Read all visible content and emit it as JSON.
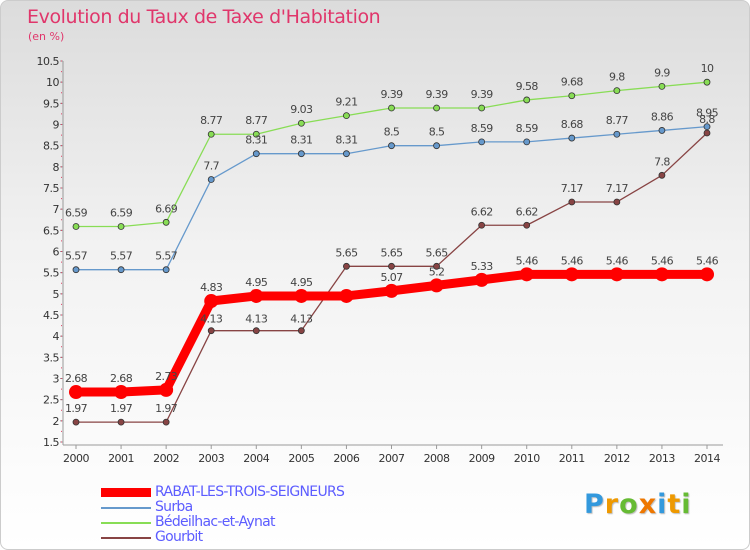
{
  "header": {
    "title": "Evolution du Taux de Taxe d'Habitation",
    "unit": "(en %)"
  },
  "logo": {
    "letters": [
      "P",
      "r",
      "o",
      "x",
      "i",
      "t",
      "i"
    ],
    "colors": [
      "#3399dd",
      "#ee9900",
      "#66bb33",
      "#ee7700",
      "#3399dd",
      "#ee9900",
      "#66bb33"
    ]
  },
  "chart_data": {
    "type": "line",
    "title": "Evolution du Taux de Taxe d'Habitation",
    "ylabel": "(en %)",
    "xlabel": "",
    "x": [
      "2000",
      "2001",
      "2002",
      "2003",
      "2004",
      "2005",
      "2006",
      "2007",
      "2008",
      "2009",
      "2010",
      "2011",
      "2012",
      "2013",
      "2014"
    ],
    "ylim": [
      1.5,
      10.5
    ],
    "yticks": [
      "1.5",
      "2",
      "2.5",
      "3",
      "3.5",
      "4",
      "4.5",
      "5",
      "5.5",
      "6",
      "6.5",
      "7",
      "7.5",
      "8",
      "8.5",
      "9",
      "9.5",
      "10",
      "10.5"
    ],
    "grid": false,
    "legend_position": "bottom-left",
    "series": [
      {
        "name": "RABAT-LES-TROIS-SEIGNEURS",
        "color": "#ff0000",
        "values": [
          2.68,
          2.68,
          2.73,
          4.83,
          4.95,
          4.95,
          4.95,
          5.07,
          5.2,
          5.33,
          5.46,
          5.46,
          5.46,
          5.46,
          5.46
        ],
        "labels": [
          "2.68",
          "2.68",
          "2.73",
          "4.83",
          "4.95",
          "4.95",
          "",
          "5.07",
          "5.2",
          "5.33",
          "5.46",
          "5.46",
          "5.46",
          "5.46",
          "5.46"
        ]
      },
      {
        "name": "Surba",
        "color": "#6699cc",
        "values": [
          5.57,
          5.57,
          5.57,
          7.7,
          8.31,
          8.31,
          8.31,
          8.5,
          8.5,
          8.59,
          8.59,
          8.68,
          8.77,
          8.86,
          8.95
        ],
        "labels": [
          "5.57",
          "5.57",
          "5.57",
          "7.7",
          "8.31",
          "8.31",
          "8.31",
          "8.5",
          "8.5",
          "8.59",
          "8.59",
          "8.68",
          "8.77",
          "8.86",
          "8.95"
        ]
      },
      {
        "name": "Bédeilhac-et-Aynat",
        "color": "#88dd55",
        "values": [
          6.59,
          6.59,
          6.69,
          8.77,
          8.77,
          9.03,
          9.21,
          9.39,
          9.39,
          9.39,
          9.58,
          9.68,
          9.8,
          9.9,
          10
        ],
        "labels": [
          "6.59",
          "6.59",
          "6.69",
          "8.77",
          "8.77",
          "9.03",
          "9.21",
          "9.39",
          "9.39",
          "9.39",
          "9.58",
          "9.68",
          "9.8",
          "9.9",
          "10"
        ]
      },
      {
        "name": "Gourbit",
        "color": "#884444",
        "values": [
          1.97,
          1.97,
          1.97,
          4.13,
          4.13,
          4.13,
          5.65,
          5.65,
          5.65,
          6.62,
          6.62,
          7.17,
          7.17,
          7.8,
          8.8
        ],
        "labels": [
          "1.97",
          "1.97",
          "1.97",
          "4.13",
          "4.13",
          "4.13",
          "5.65",
          "5.65",
          "5.65",
          "6.62",
          "6.62",
          "7.17",
          "7.17",
          "7.8",
          "8.8"
        ]
      }
    ]
  }
}
